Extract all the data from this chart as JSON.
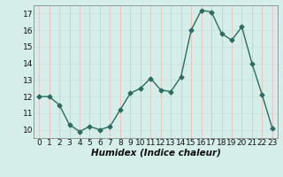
{
  "x": [
    0,
    1,
    2,
    3,
    4,
    5,
    6,
    7,
    8,
    9,
    10,
    11,
    12,
    13,
    14,
    15,
    16,
    17,
    18,
    19,
    20,
    21,
    22,
    23
  ],
  "y": [
    12.0,
    12.0,
    11.5,
    10.3,
    9.9,
    10.2,
    10.0,
    10.2,
    11.2,
    12.2,
    12.5,
    13.1,
    12.4,
    12.3,
    13.2,
    16.0,
    17.2,
    17.1,
    15.8,
    15.4,
    16.2,
    14.0,
    12.1,
    10.1
  ],
  "xlabel": "Humidex (Indice chaleur)",
  "ylim": [
    9.5,
    17.5
  ],
  "xlim": [
    -0.5,
    23.5
  ],
  "yticks": [
    10,
    11,
    12,
    13,
    14,
    15,
    16,
    17
  ],
  "xticks": [
    0,
    1,
    2,
    3,
    4,
    5,
    6,
    7,
    8,
    9,
    10,
    11,
    12,
    13,
    14,
    15,
    16,
    17,
    18,
    19,
    20,
    21,
    22,
    23
  ],
  "line_color": "#2d6b5e",
  "marker": "D",
  "marker_size": 2.5,
  "bg_color": "#d5eeea",
  "grid_color_v": "#e8b8b8",
  "grid_color_h": "#c8e0dc",
  "tick_label_fontsize": 6.5,
  "xlabel_fontsize": 7.5,
  "xlabel_fontweight": "bold"
}
